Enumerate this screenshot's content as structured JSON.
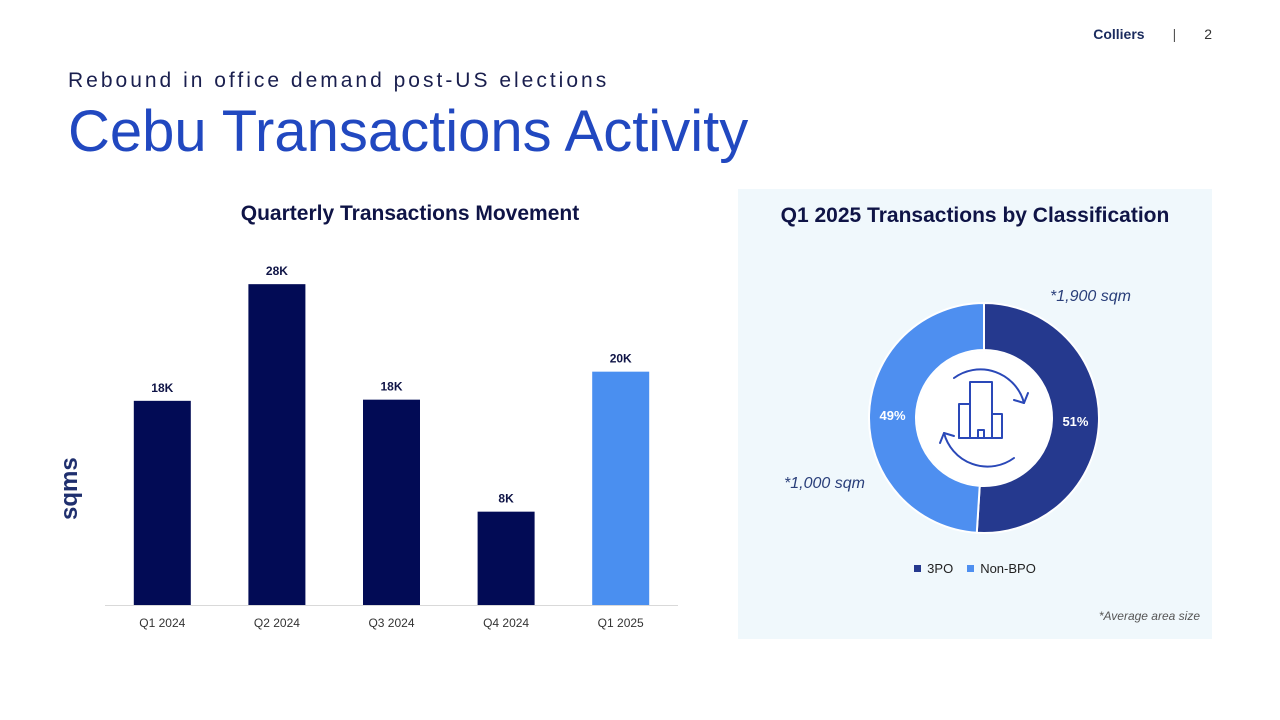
{
  "header": {
    "brand": "Colliers",
    "separator": "|",
    "page_number": "2"
  },
  "subtitle": "Rebound in office demand post-US elections",
  "title": "Cebu Transactions Activity",
  "colors": {
    "navy": "#020b55",
    "light_blue": "#4a8ff0",
    "donut_dark": "#25398e",
    "donut_light": "#4e8ff0",
    "panel_bg": "#f0f8fc"
  },
  "bar_panel": {
    "title": "Quarterly Transactions Movement",
    "ylabel": "sqms"
  },
  "donut_panel": {
    "title": "Q1 2025  Transactions by Classification",
    "note_bpo": "*1,900 sqm",
    "note_non_bpo": "*1,000 sqm",
    "footnote": "*Average area size",
    "center_icon": "building-cycle-icon"
  },
  "chart_data": [
    {
      "type": "bar",
      "title": "Quarterly Transactions Movement",
      "ylabel": "sqms",
      "categories": [
        "Q1 2024",
        "Q2 2024",
        "Q3 2024",
        "Q4 2024",
        "Q1 2025"
      ],
      "values": [
        17500,
        27500,
        17600,
        8000,
        20000
      ],
      "data_labels": [
        "18K",
        "28K",
        "18K",
        "8K",
        "20K"
      ],
      "highlight_index": 4,
      "ylim": [
        0,
        30000
      ],
      "grid": false
    },
    {
      "type": "pie",
      "title": "Q1 2025  Transactions by Classification",
      "donut": true,
      "slices": [
        {
          "name": "3PO",
          "value": 51,
          "label": "51%",
          "color": "#25398e"
        },
        {
          "name": "Non-BPO",
          "value": 49,
          "label": "49%",
          "color": "#4e8ff0"
        }
      ],
      "legend": "bottom"
    }
  ]
}
